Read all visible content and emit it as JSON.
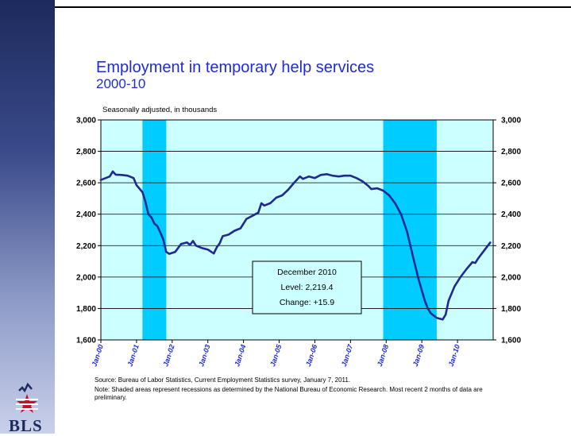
{
  "slide": {
    "title": "Employment in temporary help services",
    "subtitle": "2000-10",
    "note_top": "Seasonally adjusted, in thousands",
    "source": "Source:  Bureau of Labor Statistics, Current Employment Statistics survey, January 7, 2011.",
    "footnote": "Note: Shaded areas represent recessions as determined by the National Bureau of Economic Research.  Most recent 2 months of data are preliminary.",
    "logo_text": "BLS"
  },
  "colors": {
    "title": "#1f2bd8",
    "plot_bg": "#ccffff",
    "recession": "#00ccff",
    "line": "#1f2a90",
    "grid": "#000000"
  },
  "callout": {
    "line1": "December 2010",
    "line2": "Level: 2,219.4",
    "line3": "Change: +15.9"
  },
  "chart_data": {
    "type": "line",
    "title": "Employment in temporary help services",
    "subtitle": "2000-10",
    "ylabel": "",
    "xlabel": "",
    "ylim": [
      1600,
      3000
    ],
    "yticks": [
      1600,
      1800,
      2000,
      2200,
      2400,
      2600,
      2800,
      3000
    ],
    "ytick_labels": [
      "1,600",
      "1,800",
      "2,000",
      "2,200",
      "2,400",
      "2,600",
      "2,800",
      "3,000"
    ],
    "xtick_labels": [
      "Jan-00",
      "Jan-01",
      "Jan-02",
      "Jan-03",
      "Jan-04",
      "Jan-05",
      "Jan-06",
      "Jan-07",
      "Jan-08",
      "Jan-09",
      "Jan-10"
    ],
    "grid": true,
    "recessions": [
      {
        "start": "2001-03",
        "end": "2001-11"
      },
      {
        "start": "2007-12",
        "end": "2009-06"
      }
    ],
    "series": [
      {
        "points": [
          [
            "2000-01",
            2618
          ],
          [
            "2000-04",
            2640
          ],
          [
            "2000-05",
            2672
          ],
          [
            "2000-06",
            2652
          ],
          [
            "2000-08",
            2650
          ],
          [
            "2000-10",
            2645
          ],
          [
            "2000-12",
            2630
          ],
          [
            "2001-01",
            2585
          ],
          [
            "2001-03",
            2540
          ],
          [
            "2001-04",
            2480
          ],
          [
            "2001-05",
            2400
          ],
          [
            "2001-06",
            2380
          ],
          [
            "2001-07",
            2340
          ],
          [
            "2001-08",
            2325
          ],
          [
            "2001-09",
            2285
          ],
          [
            "2001-10",
            2240
          ],
          [
            "2001-11",
            2160
          ],
          [
            "2001-12",
            2148
          ],
          [
            "2002-02",
            2160
          ],
          [
            "2002-04",
            2210
          ],
          [
            "2002-06",
            2220
          ],
          [
            "2002-07",
            2205
          ],
          [
            "2002-08",
            2230
          ],
          [
            "2002-09",
            2200
          ],
          [
            "2002-11",
            2185
          ],
          [
            "2003-01",
            2175
          ],
          [
            "2003-03",
            2150
          ],
          [
            "2003-04",
            2190
          ],
          [
            "2003-05",
            2215
          ],
          [
            "2003-06",
            2260
          ],
          [
            "2003-08",
            2270
          ],
          [
            "2003-10",
            2295
          ],
          [
            "2003-12",
            2310
          ],
          [
            "2004-02",
            2370
          ],
          [
            "2004-04",
            2390
          ],
          [
            "2004-06",
            2410
          ],
          [
            "2004-07",
            2470
          ],
          [
            "2004-08",
            2455
          ],
          [
            "2004-10",
            2470
          ],
          [
            "2004-12",
            2505
          ],
          [
            "2005-02",
            2520
          ],
          [
            "2005-04",
            2555
          ],
          [
            "2005-06",
            2600
          ],
          [
            "2005-08",
            2640
          ],
          [
            "2005-09",
            2625
          ],
          [
            "2005-11",
            2640
          ],
          [
            "2006-01",
            2630
          ],
          [
            "2006-03",
            2650
          ],
          [
            "2006-05",
            2655
          ],
          [
            "2006-07",
            2645
          ],
          [
            "2006-09",
            2640
          ],
          [
            "2006-11",
            2645
          ],
          [
            "2007-01",
            2645
          ],
          [
            "2007-03",
            2630
          ],
          [
            "2007-05",
            2610
          ],
          [
            "2007-07",
            2580
          ],
          [
            "2007-08",
            2560
          ],
          [
            "2007-10",
            2565
          ],
          [
            "2007-12",
            2550
          ],
          [
            "2008-02",
            2520
          ],
          [
            "2008-04",
            2470
          ],
          [
            "2008-06",
            2400
          ],
          [
            "2008-08",
            2290
          ],
          [
            "2008-10",
            2130
          ],
          [
            "2008-12",
            1980
          ],
          [
            "2009-02",
            1850
          ],
          [
            "2009-03",
            1800
          ],
          [
            "2009-04",
            1770
          ],
          [
            "2009-06",
            1740
          ],
          [
            "2009-08",
            1730
          ],
          [
            "2009-09",
            1760
          ],
          [
            "2009-10",
            1850
          ],
          [
            "2009-12",
            1940
          ],
          [
            "2010-02",
            2000
          ],
          [
            "2010-04",
            2050
          ],
          [
            "2010-06",
            2095
          ],
          [
            "2010-07",
            2090
          ],
          [
            "2010-08",
            2120
          ],
          [
            "2010-10",
            2170
          ],
          [
            "2010-12",
            2219.4
          ]
        ]
      }
    ]
  }
}
